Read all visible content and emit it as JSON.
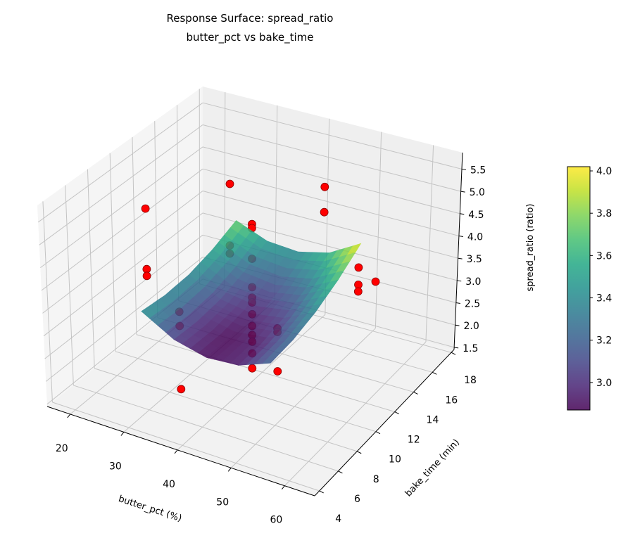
{
  "chart_data": {
    "type": "surface3d",
    "title": "Response Surface: spread_ratio",
    "subtitle": "butter_pct vs bake_time",
    "xlabel": "butter_pct (%)",
    "ylabel": "bake_time (min)",
    "zlabel": "spread_ratio (ratio)",
    "xlim": [
      15.7,
      65.6
    ],
    "ylim": [
      3.5,
      18.3
    ],
    "zlim": [
      1.45,
      5.87
    ],
    "xticks": [
      "20",
      "30",
      "40",
      "50",
      "60"
    ],
    "yticks": [
      "4",
      "6",
      "8",
      "10",
      "12",
      "14",
      "16",
      "18"
    ],
    "zticks": [
      "1.5",
      "2.0",
      "2.5",
      "3.0",
      "3.5",
      "4.0",
      "4.5",
      "5.0",
      "5.5"
    ],
    "grid": true,
    "colormap": "viridis",
    "colorbar": {
      "range": [
        2.87,
        4.02
      ],
      "ticks": [
        "3.0",
        "3.2",
        "3.4",
        "3.6",
        "3.8",
        "4.0"
      ]
    },
    "surface": {
      "x": [
        28,
        34,
        40,
        46,
        52
      ],
      "y": [
        6.5,
        8.75,
        11,
        13.25,
        15.5
      ],
      "z": [
        [
          3.45,
          3.05,
          2.88,
          2.93,
          3.2
        ],
        [
          3.38,
          3.01,
          2.86,
          2.94,
          3.25
        ],
        [
          3.4,
          3.06,
          2.95,
          3.06,
          3.4
        ],
        [
          3.53,
          3.22,
          3.14,
          3.28,
          3.65
        ],
        [
          3.75,
          3.48,
          3.43,
          3.6,
          4.0
        ]
      ]
    },
    "scatter": {
      "color": "#ff0000",
      "edge_color": "#8b0000",
      "points": [
        [
          20,
          11,
          4.6
        ],
        [
          25.86,
          15.95,
          4.42
        ],
        [
          40,
          18,
          4.39
        ],
        [
          40,
          18,
          3.82
        ],
        [
          40,
          11,
          4.94
        ],
        [
          40,
          11,
          4.85
        ],
        [
          20,
          11,
          3.25
        ],
        [
          20,
          11,
          3.1
        ],
        [
          25.86,
          15.95,
          3.03
        ],
        [
          25.86,
          15.95,
          2.85
        ],
        [
          40,
          11,
          4.17
        ],
        [
          60,
          11,
          4.66
        ],
        [
          60,
          11,
          4.28
        ],
        [
          60,
          11,
          4.13
        ],
        [
          54.14,
          15.95,
          3.12
        ],
        [
          40,
          4,
          4.37
        ],
        [
          40,
          4,
          4.06
        ],
        [
          40,
          11,
          3.54
        ],
        [
          40,
          11,
          3.31
        ],
        [
          40,
          11,
          3.2
        ],
        [
          40,
          11,
          2.94
        ],
        [
          40,
          11,
          2.68
        ],
        [
          40,
          11,
          2.48
        ],
        [
          40,
          11,
          2.33
        ],
        [
          40,
          11,
          2.07
        ],
        [
          40,
          11,
          1.74
        ],
        [
          54.14,
          6.05,
          4.13
        ],
        [
          54.14,
          6.05,
          4.05
        ],
        [
          54.14,
          6.05,
          3.19
        ],
        [
          40,
          4,
          2.68
        ]
      ]
    }
  }
}
